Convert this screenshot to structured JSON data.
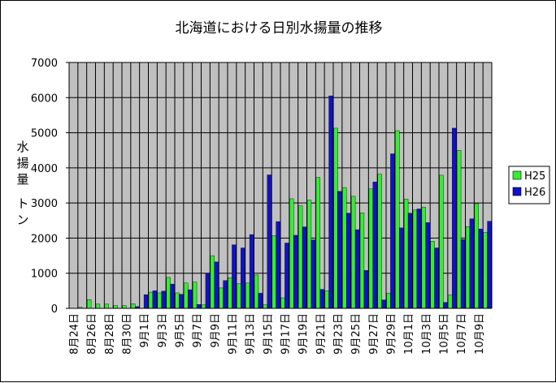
{
  "chart_data": {
    "type": "bar",
    "title": "北海道における日別水揚量の推移",
    "ylabel": "水揚量　トン",
    "xlabel": "",
    "ylim": [
      0,
      7000
    ],
    "y_ticks": [
      "0",
      "1000",
      "2000",
      "3000",
      "4000",
      "5000",
      "6000",
      "7000"
    ],
    "grid": true,
    "legend_position": "right",
    "plot_background": "#c0c0c0",
    "categories": [
      "8月24日",
      "8月25日",
      "8月26日",
      "8月27日",
      "8月28日",
      "8月29日",
      "8月30日",
      "8月31日",
      "9月1日",
      "9月2日",
      "9月3日",
      "9月4日",
      "9月5日",
      "9月6日",
      "9月7日",
      "9月8日",
      "9月9日",
      "9月10日",
      "9月11日",
      "9月12日",
      "9月13日",
      "9月14日",
      "9月15日",
      "9月16日",
      "9月17日",
      "9月18日",
      "9月19日",
      "9月20日",
      "9月21日",
      "9月22日",
      "9月23日",
      "9月24日",
      "9月25日",
      "9月26日",
      "9月27日",
      "9月28日",
      "9月29日",
      "9月30日",
      "10月1日",
      "10月2日",
      "10月3日",
      "10月4日",
      "10月5日",
      "10月6日",
      "10月7日",
      "10月8日",
      "10月9日",
      "10月10日"
    ],
    "x_tick_labels": [
      "8月24日",
      "8月26日",
      "8月28日",
      "8月30日",
      "9月1日",
      "9月3日",
      "9月5日",
      "9月7日",
      "9月9日",
      "9月11日",
      "9月13日",
      "9月15日",
      "9月17日",
      "9月19日",
      "9月21日",
      "9月23日",
      "9月25日",
      "9月27日",
      "9月29日",
      "10月1日",
      "10月3日",
      "10月5日",
      "10月7日",
      "10月9日"
    ],
    "series": [
      {
        "name": "H25",
        "color": "#33ee33",
        "values": [
          0,
          30,
          250,
          120,
          120,
          80,
          80,
          130,
          0,
          460,
          440,
          880,
          440,
          720,
          750,
          100,
          1500,
          580,
          870,
          700,
          720,
          950,
          100,
          2070,
          300,
          3120,
          2920,
          3080,
          3730,
          500,
          5130,
          3440,
          3190,
          2720,
          3400,
          3820,
          430,
          5060,
          3110,
          2800,
          2880,
          1910,
          3790,
          380,
          4500,
          2330,
          2980,
          2160
        ]
      },
      {
        "name": "H26",
        "color": "#1111cc",
        "values": [
          0,
          0,
          0,
          0,
          0,
          0,
          0,
          50,
          390,
          500,
          490,
          690,
          400,
          530,
          110,
          1000,
          1320,
          790,
          1810,
          1720,
          2100,
          430,
          3800,
          2470,
          1860,
          2080,
          2320,
          1950,
          540,
          6050,
          3330,
          2710,
          2240,
          1080,
          3600,
          240,
          4400,
          2290,
          2710,
          2830,
          2440,
          1720,
          170,
          5130,
          1960,
          2550,
          2260,
          2480
        ]
      }
    ]
  }
}
